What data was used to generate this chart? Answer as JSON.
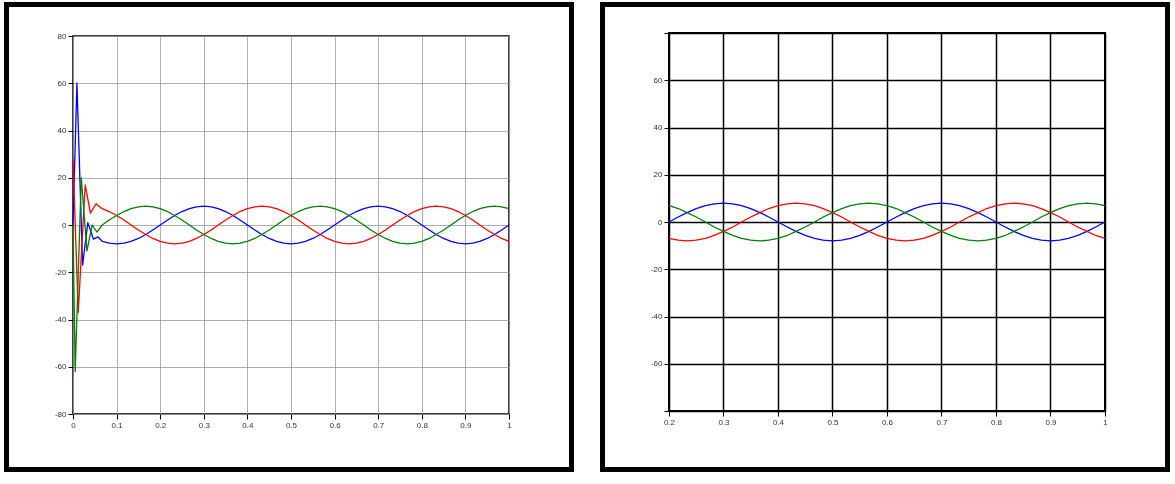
{
  "chart_data": [
    {
      "type": "line",
      "xlim": [
        0,
        1
      ],
      "ylim": [
        -80,
        80
      ],
      "xticks": [
        0,
        0.1,
        0.2,
        0.3,
        0.4,
        0.5,
        0.6,
        0.7,
        0.8,
        0.9,
        1
      ],
      "yticks": [
        -80,
        -60,
        -40,
        -20,
        0,
        20,
        40,
        60,
        80
      ],
      "grid": true,
      "marker": "none",
      "line_style": "solid",
      "series": [
        {
          "color": "#0000ff",
          "x": [
            0,
            0.009,
            0.022,
            0.034,
            0.047,
            0.057,
            0.067,
            0.083,
            0.1,
            0.117,
            0.133,
            0.15,
            0.167,
            0.183,
            0.2,
            0.217,
            0.233,
            0.25,
            0.267,
            0.283,
            0.3,
            0.317,
            0.333,
            0.35,
            0.367,
            0.383,
            0.4,
            0.417,
            0.433,
            0.45,
            0.467,
            0.483,
            0.5,
            0.517,
            0.533,
            0.55,
            0.567,
            0.583,
            0.6,
            0.617,
            0.633,
            0.65,
            0.667,
            0.683,
            0.7,
            0.717,
            0.733,
            0.75,
            0.767,
            0.783,
            0.8,
            0.817,
            0.833,
            0.85,
            0.867,
            0.883,
            0.9,
            0.917,
            0.933,
            0.95,
            0.967,
            0.983,
            1
          ],
          "values": [
            0,
            60,
            -17,
            1,
            -6,
            -5,
            -6.9,
            -7.7,
            -8,
            -7.7,
            -6.9,
            -5.7,
            -4,
            -2.1,
            0,
            2.1,
            4,
            5.7,
            6.9,
            7.7,
            8,
            7.7,
            6.9,
            5.7,
            4,
            2.1,
            0,
            -2.1,
            -4,
            -5.7,
            -6.9,
            -7.7,
            -8,
            -7.7,
            -6.9,
            -5.7,
            -4,
            -2.1,
            0,
            2.1,
            4,
            5.7,
            6.9,
            7.7,
            8,
            7.7,
            6.9,
            5.7,
            4,
            2.1,
            0,
            -2.1,
            -4,
            -5.7,
            -6.9,
            -7.7,
            -8,
            -7.7,
            -6.9,
            -5.7,
            -4,
            -2.1,
            0
          ]
        },
        {
          "color": "#ff0000",
          "x": [
            0,
            0.012,
            0.028,
            0.04,
            0.053,
            0.067,
            0.083,
            0.1,
            0.117,
            0.133,
            0.15,
            0.167,
            0.183,
            0.2,
            0.217,
            0.233,
            0.25,
            0.267,
            0.283,
            0.3,
            0.317,
            0.333,
            0.35,
            0.367,
            0.383,
            0.4,
            0.417,
            0.433,
            0.45,
            0.467,
            0.483,
            0.5,
            0.517,
            0.533,
            0.55,
            0.567,
            0.583,
            0.6,
            0.617,
            0.633,
            0.65,
            0.667,
            0.683,
            0.7,
            0.717,
            0.733,
            0.75,
            0.767,
            0.783,
            0.8,
            0.817,
            0.833,
            0.85,
            0.867,
            0.883,
            0.9,
            0.917,
            0.933,
            0.95,
            0.967,
            0.983,
            1
          ],
          "values": [
            28,
            -37,
            17,
            5,
            9,
            6.9,
            5.7,
            4,
            2.1,
            0,
            -2.1,
            -4,
            -5.7,
            -6.9,
            -7.7,
            -8,
            -7.7,
            -6.9,
            -5.7,
            -4,
            -2.1,
            0,
            2.1,
            4,
            5.7,
            6.9,
            7.7,
            8,
            7.7,
            6.9,
            5.7,
            4,
            2.1,
            0,
            -2.1,
            -4,
            -5.7,
            -6.9,
            -7.7,
            -8,
            -7.7,
            -6.9,
            -5.7,
            -4,
            -2.1,
            0,
            2.1,
            4,
            5.7,
            6.9,
            7.7,
            8,
            7.7,
            6.9,
            5.7,
            4,
            2.1,
            0,
            -2.1,
            -4,
            -5.7,
            -6.9
          ]
        },
        {
          "color": "#008000",
          "x": [
            0,
            0.005,
            0.019,
            0.032,
            0.044,
            0.055,
            0.067,
            0.083,
            0.1,
            0.117,
            0.133,
            0.15,
            0.167,
            0.183,
            0.2,
            0.217,
            0.233,
            0.25,
            0.267,
            0.283,
            0.3,
            0.317,
            0.333,
            0.35,
            0.367,
            0.383,
            0.4,
            0.417,
            0.433,
            0.45,
            0.467,
            0.483,
            0.5,
            0.517,
            0.533,
            0.55,
            0.567,
            0.583,
            0.6,
            0.617,
            0.633,
            0.65,
            0.667,
            0.683,
            0.7,
            0.717,
            0.733,
            0.75,
            0.767,
            0.783,
            0.8,
            0.817,
            0.833,
            0.85,
            0.867,
            0.883,
            0.9,
            0.917,
            0.933,
            0.95,
            0.967,
            0.983,
            1
          ],
          "values": [
            0,
            -62,
            20,
            -11,
            0,
            -3,
            0,
            2.1,
            4,
            5.7,
            6.9,
            7.7,
            8,
            7.7,
            6.9,
            5.7,
            4,
            2.1,
            0,
            -2.1,
            -4,
            -5.7,
            -6.9,
            -7.7,
            -8,
            -7.7,
            -6.9,
            -5.7,
            -4,
            -2.1,
            0,
            2.1,
            4,
            5.7,
            6.9,
            7.7,
            8,
            7.7,
            6.9,
            5.7,
            4,
            2.1,
            0,
            -2.1,
            -4,
            -5.7,
            -6.9,
            -7.7,
            -8,
            -7.7,
            -6.9,
            -5.7,
            -4,
            -2.1,
            0,
            2.1,
            4,
            5.7,
            6.9,
            7.7,
            8,
            7.7,
            6.9
          ]
        }
      ]
    },
    {
      "type": "line",
      "xlim": [
        0.2,
        1
      ],
      "ylim": [
        -80,
        80
      ],
      "xticks": [
        0.2,
        0.3,
        0.4,
        0.5,
        0.6,
        0.7,
        0.8,
        0.9,
        1
      ],
      "yticks": [
        {
          "value": -80,
          "label": null
        },
        -60,
        -40,
        -20,
        0,
        20,
        40,
        60,
        {
          "value": 80,
          "label": null
        }
      ],
      "grid": true,
      "marker": "none",
      "line_style": "solid",
      "x": [
        0.2,
        0.217,
        0.233,
        0.25,
        0.267,
        0.283,
        0.3,
        0.317,
        0.333,
        0.35,
        0.367,
        0.383,
        0.4,
        0.417,
        0.433,
        0.45,
        0.467,
        0.483,
        0.5,
        0.517,
        0.533,
        0.55,
        0.567,
        0.583,
        0.6,
        0.617,
        0.633,
        0.65,
        0.667,
        0.683,
        0.7,
        0.717,
        0.733,
        0.75,
        0.767,
        0.783,
        0.8,
        0.817,
        0.833,
        0.85,
        0.867,
        0.883,
        0.9,
        0.917,
        0.933,
        0.95,
        0.967,
        0.983,
        1
      ],
      "series": [
        {
          "color": "#0000ff",
          "values": [
            0,
            2.1,
            4,
            5.7,
            6.9,
            7.7,
            8,
            7.7,
            6.9,
            5.7,
            4,
            2.1,
            0,
            -2.1,
            -4,
            -5.7,
            -6.9,
            -7.7,
            -8,
            -7.7,
            -6.9,
            -5.7,
            -4,
            -2.1,
            0,
            2.1,
            4,
            5.7,
            6.9,
            7.7,
            8,
            7.7,
            6.9,
            5.7,
            4,
            2.1,
            0,
            -2.1,
            -4,
            -5.7,
            -6.9,
            -7.7,
            -8,
            -7.7,
            -6.9,
            -5.7,
            -4,
            -2.1,
            0
          ]
        },
        {
          "color": "#ff0000",
          "values": [
            -6.9,
            -7.7,
            -8,
            -7.7,
            -6.9,
            -5.7,
            -4,
            -2.1,
            0,
            2.1,
            4,
            5.7,
            6.9,
            7.7,
            8,
            7.7,
            6.9,
            5.7,
            4,
            2.1,
            0,
            -2.1,
            -4,
            -5.7,
            -6.9,
            -7.7,
            -8,
            -7.7,
            -6.9,
            -5.7,
            -4,
            -2.1,
            0,
            2.1,
            4,
            5.7,
            6.9,
            7.7,
            8,
            7.7,
            6.9,
            5.7,
            4,
            2.1,
            0,
            -2.1,
            -4,
            -5.7,
            -6.9
          ]
        },
        {
          "color": "#008000",
          "values": [
            6.9,
            5.7,
            4,
            2.1,
            0,
            -2.1,
            -4,
            -5.7,
            -6.9,
            -7.7,
            -8,
            -7.7,
            -6.9,
            -5.7,
            -4,
            -2.1,
            0,
            2.1,
            4,
            5.7,
            6.9,
            7.7,
            8,
            7.7,
            6.9,
            5.7,
            4,
            2.1,
            0,
            -2.1,
            -4,
            -5.7,
            -6.9,
            -7.7,
            -8,
            -7.7,
            -6.9,
            -5.7,
            -4,
            -2.1,
            0,
            2.1,
            4,
            5.7,
            6.9,
            7.7,
            8,
            7.7,
            6.9
          ]
        }
      ]
    }
  ]
}
